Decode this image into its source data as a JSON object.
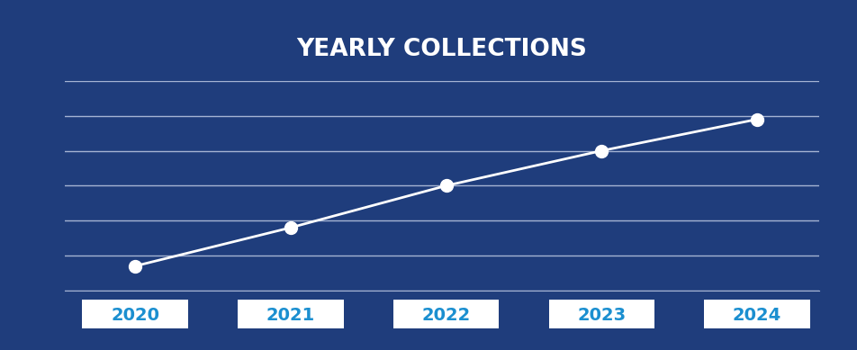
{
  "chart_data": {
    "type": "line",
    "title": "YEARLY COLLECTIONS",
    "categories": [
      "2020",
      "2021",
      "2022",
      "2023",
      "2024"
    ],
    "values": [
      0.7,
      1.8,
      3.0,
      4.0,
      4.9
    ],
    "color": "#ffffff",
    "marker": "o",
    "line_style": "solid",
    "ylim": [
      0,
      6
    ],
    "yticks": [
      0,
      1,
      2,
      3,
      4,
      5,
      6
    ],
    "grid": true,
    "tick_labels": "x"
  }
}
